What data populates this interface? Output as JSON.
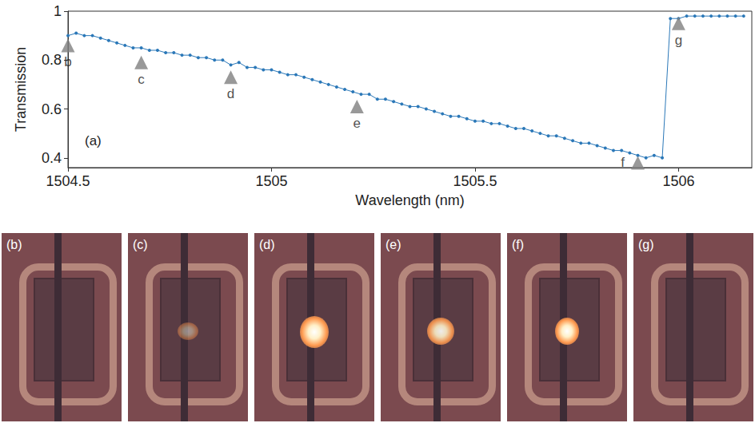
{
  "chart_data": {
    "type": "line",
    "xlabel": "Wavelength (nm)",
    "ylabel": "Transmission",
    "panel_label": "(a)",
    "x": [
      1504.5,
      1504.52,
      1504.54,
      1504.56,
      1504.58,
      1504.6,
      1504.62,
      1504.64,
      1504.66,
      1504.68,
      1504.7,
      1504.72,
      1504.74,
      1504.76,
      1504.78,
      1504.8,
      1504.82,
      1504.84,
      1504.86,
      1504.88,
      1504.9,
      1504.92,
      1504.94,
      1504.96,
      1504.98,
      1505,
      1505.02,
      1505.04,
      1505.06,
      1505.08,
      1505.1,
      1505.12,
      1505.14,
      1505.16,
      1505.18,
      1505.2,
      1505.22,
      1505.24,
      1505.26,
      1505.28,
      1505.3,
      1505.32,
      1505.34,
      1505.36,
      1505.38,
      1505.4,
      1505.42,
      1505.44,
      1505.46,
      1505.48,
      1505.5,
      1505.52,
      1505.54,
      1505.56,
      1505.58,
      1505.6,
      1505.62,
      1505.64,
      1505.66,
      1505.68,
      1505.7,
      1505.72,
      1505.74,
      1505.76,
      1505.78,
      1505.8,
      1505.82,
      1505.84,
      1505.86,
      1505.88,
      1505.9,
      1505.92,
      1505.94,
      1505.96,
      1505.98,
      1506,
      1506.02,
      1506.04,
      1506.06,
      1506.08,
      1506.1,
      1506.12,
      1506.14,
      1506.16
    ],
    "values": [
      0.9,
      0.91,
      0.9,
      0.9,
      0.89,
      0.88,
      0.87,
      0.86,
      0.85,
      0.85,
      0.84,
      0.84,
      0.83,
      0.83,
      0.82,
      0.82,
      0.81,
      0.81,
      0.8,
      0.8,
      0.78,
      0.79,
      0.77,
      0.77,
      0.76,
      0.76,
      0.75,
      0.74,
      0.74,
      0.73,
      0.72,
      0.71,
      0.7,
      0.69,
      0.68,
      0.67,
      0.66,
      0.66,
      0.64,
      0.64,
      0.63,
      0.62,
      0.61,
      0.61,
      0.6,
      0.59,
      0.58,
      0.57,
      0.57,
      0.56,
      0.55,
      0.55,
      0.54,
      0.54,
      0.53,
      0.52,
      0.52,
      0.51,
      0.5,
      0.49,
      0.49,
      0.48,
      0.47,
      0.46,
      0.46,
      0.45,
      0.44,
      0.43,
      0.43,
      0.42,
      0.41,
      0.4,
      0.41,
      0.4,
      0.97,
      0.97,
      0.98,
      0.98,
      0.98,
      0.98,
      0.98,
      0.98,
      0.98,
      0.98
    ],
    "color": "#2b78b8",
    "marker": "circle",
    "line_style": "solid",
    "xlim": [
      1504.5,
      1506.18
    ],
    "ylim": [
      0.36,
      1
    ],
    "xticks": [
      1504.5,
      1505,
      1505.5,
      1506
    ],
    "yticks": [
      0.4,
      0.6,
      0.8,
      1
    ],
    "grid": false,
    "annotations": [
      {
        "label": "b",
        "x": 1504.5,
        "y": 0.86
      },
      {
        "label": "c",
        "x": 1504.68,
        "y": 0.79
      },
      {
        "label": "d",
        "x": 1504.9,
        "y": 0.73
      },
      {
        "label": "e",
        "x": 1505.21,
        "y": 0.61
      },
      {
        "label": "f",
        "x": 1505.9,
        "y": 0.38
      },
      {
        "label": "g",
        "x": 1506.0,
        "y": 0.95
      }
    ]
  },
  "photos": [
    "(b)",
    "(c)",
    "(d)",
    "(e)",
    "(f)",
    "(g)"
  ]
}
